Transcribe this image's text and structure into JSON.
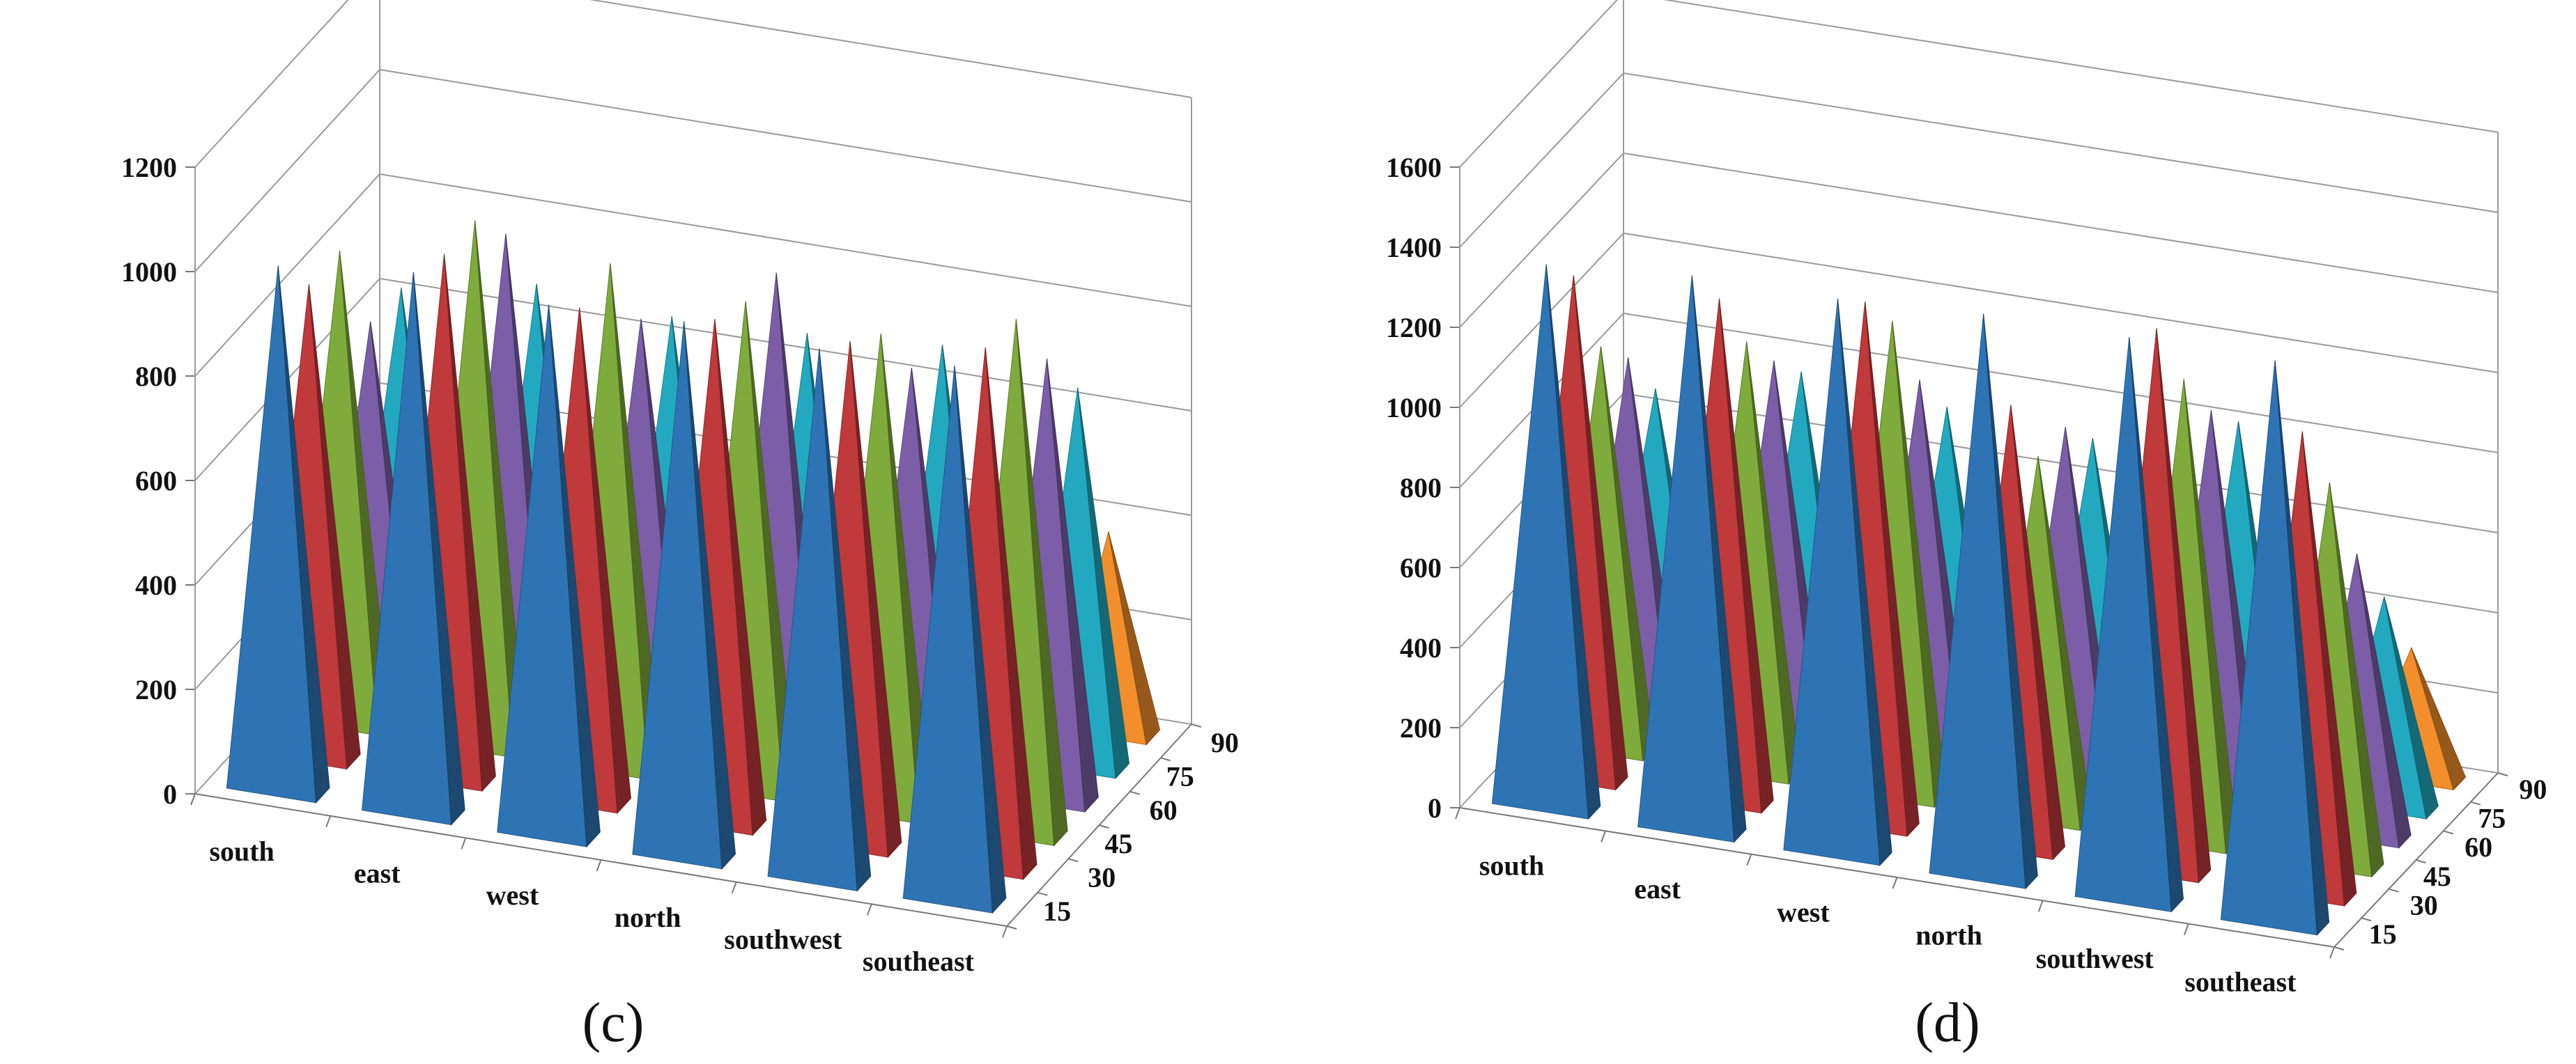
{
  "chart_data": [
    {
      "type": "3d-column",
      "panel_label": "(c)",
      "categories": [
        "south",
        "east",
        "west",
        "north",
        "southwest",
        "southeast"
      ],
      "depth_labels": [
        "15",
        "30",
        "45",
        "60",
        "75",
        "90"
      ],
      "yticks": [
        "0",
        "200",
        "400",
        "600",
        "800",
        "1000",
        "1200"
      ],
      "ylim": [
        0,
        1200
      ],
      "colors": [
        "#2E74B5",
        "#C0393B",
        "#7FAA3C",
        "#7B5EA7",
        "#22A9C0",
        "#F28E2B"
      ],
      "series": [
        {
          "name": "15",
          "values": [
            1000,
            1030,
            1010,
            1020,
            1010,
            1020
          ]
        },
        {
          "name": "30",
          "values": [
            900,
            1000,
            940,
            960,
            960,
            990
          ]
        },
        {
          "name": "45",
          "values": [
            900,
            1000,
            960,
            930,
            910,
            980
          ]
        },
        {
          "name": "60",
          "values": [
            700,
            910,
            790,
            920,
            780,
            840
          ]
        },
        {
          "name": "75",
          "values": [
            700,
            750,
            730,
            740,
            760,
            720
          ]
        },
        {
          "name": "90",
          "values": [
            350,
            360,
            380,
            370,
            360,
            380
          ]
        }
      ]
    },
    {
      "type": "3d-column",
      "panel_label": "(d)",
      "categories": [
        "south",
        "east",
        "west",
        "north",
        "southwest",
        "southeast"
      ],
      "depth_labels": [
        "15",
        "30",
        "45",
        "60",
        "75",
        "90"
      ],
      "yticks": [
        "0",
        "200",
        "400",
        "600",
        "800",
        "1000",
        "1200",
        "1400",
        "1600"
      ],
      "ylim": [
        0,
        1600
      ],
      "colors": [
        "#2E74B5",
        "#C0393B",
        "#7FAA3C",
        "#7B5EA7",
        "#22A9C0",
        "#F28E2B"
      ],
      "series": [
        {
          "name": "15",
          "values": [
            1350,
            1380,
            1380,
            1400,
            1400,
            1400
          ]
        },
        {
          "name": "30",
          "values": [
            1250,
            1250,
            1300,
            1100,
            1350,
            1150
          ]
        },
        {
          "name": "45",
          "values": [
            1000,
            1070,
            1180,
            900,
            1150,
            950
          ]
        },
        {
          "name": "60",
          "values": [
            900,
            950,
            960,
            900,
            1000,
            700
          ]
        },
        {
          "name": "75",
          "values": [
            750,
            850,
            820,
            800,
            900,
            520
          ]
        },
        {
          "name": "90",
          "values": [
            300,
            320,
            330,
            310,
            320,
            320
          ]
        }
      ]
    }
  ]
}
